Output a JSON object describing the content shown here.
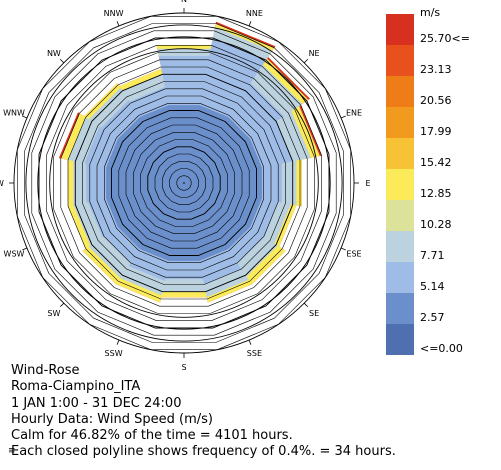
{
  "chart_data": {
    "type": "wind-rose",
    "directions": [
      "N",
      "NNE",
      "NE",
      "ENE",
      "E",
      "ESE",
      "SE",
      "SSE",
      "S",
      "SSW",
      "SW",
      "WSW",
      "W",
      "WNW",
      "NW",
      "NNW"
    ],
    "legend": {
      "unit": "m/s",
      "bins": [
        {
          "label": "25.70<=",
          "color": "#d7301f"
        },
        {
          "label": "23.13",
          "color": "#e8511e"
        },
        {
          "label": "20.56",
          "color": "#ee7d18"
        },
        {
          "label": "17.99",
          "color": "#f29a1e"
        },
        {
          "label": "15.42",
          "color": "#f8c236"
        },
        {
          "label": "12.85",
          "color": "#fbea5a"
        },
        {
          "label": "10.28",
          "color": "#dde29b"
        },
        {
          "label": "7.71",
          "color": "#bcd3df"
        },
        {
          "label": "5.14",
          "color": "#9fbce6"
        },
        {
          "label": "2.57",
          "color": "#6b8fca"
        },
        {
          "label": "<=0.00",
          "color": "#4e6fb0"
        }
      ]
    },
    "frequency_ring_step_percent": 0.4,
    "rings_count": 23,
    "calm_percent": 46.82,
    "calm_hours": 4101,
    "sector_bands_percent": {
      "calm_core": 4.3,
      "segments": [
        {
          "dir": "N",
          "bands": [
            4.3,
            7.0,
            7.4,
            7.6
          ]
        },
        {
          "dir": "NNE",
          "bands": [
            4.3,
            8.0,
            8.6,
            8.8,
            8.9
          ]
        },
        {
          "dir": "NE",
          "bands": [
            4.3,
            6.5,
            7.7,
            8.1,
            8.2
          ]
        },
        {
          "dir": "ENE",
          "bands": [
            4.3,
            6.0,
            7.0,
            7.5,
            7.6
          ]
        },
        {
          "dir": "E",
          "bands": [
            4.3,
            5.4,
            6.2,
            6.5
          ]
        },
        {
          "dir": "ESE",
          "bands": [
            4.3,
            5.2,
            5.9,
            6.2
          ]
        },
        {
          "dir": "SE",
          "bands": [
            4.3,
            5.2,
            6.1,
            6.6
          ]
        },
        {
          "dir": "SSE",
          "bands": [
            4.3,
            5.6,
            6.3,
            6.6
          ]
        },
        {
          "dir": "S",
          "bands": [
            4.3,
            5.3,
            6.0,
            6.3
          ]
        },
        {
          "dir": "SSW",
          "bands": [
            4.3,
            5.4,
            6.2,
            6.6
          ]
        },
        {
          "dir": "SW",
          "bands": [
            4.3,
            5.2,
            6.2,
            6.6
          ]
        },
        {
          "dir": "WSW",
          "bands": [
            4.3,
            5.3,
            6.1,
            6.4
          ]
        },
        {
          "dir": "W",
          "bands": [
            4.3,
            5.4,
            6.1,
            6.4
          ]
        },
        {
          "dir": "WNW",
          "bands": [
            4.3,
            5.5,
            6.4,
            6.8,
            6.9
          ]
        },
        {
          "dir": "NW",
          "bands": [
            4.3,
            5.4,
            6.2,
            6.5
          ]
        },
        {
          "dir": "NNW",
          "bands": [
            4.3,
            5.3,
            6.0,
            6.3
          ]
        }
      ]
    }
  },
  "caption": {
    "line1": "Wind-Rose",
    "line2": "Roma-Ciampino_ITA",
    "line3": "1 JAN 1:00 - 31 DEC 24:00",
    "line4": "Hourly Data: Wind Speed (m/s)",
    "line5": "Calm for 46.82% of the time = 4101 hours.",
    "line6": "Each closed polyline shows frequency of 0.4%. = 34 hours."
  },
  "corner_mark": "≡"
}
